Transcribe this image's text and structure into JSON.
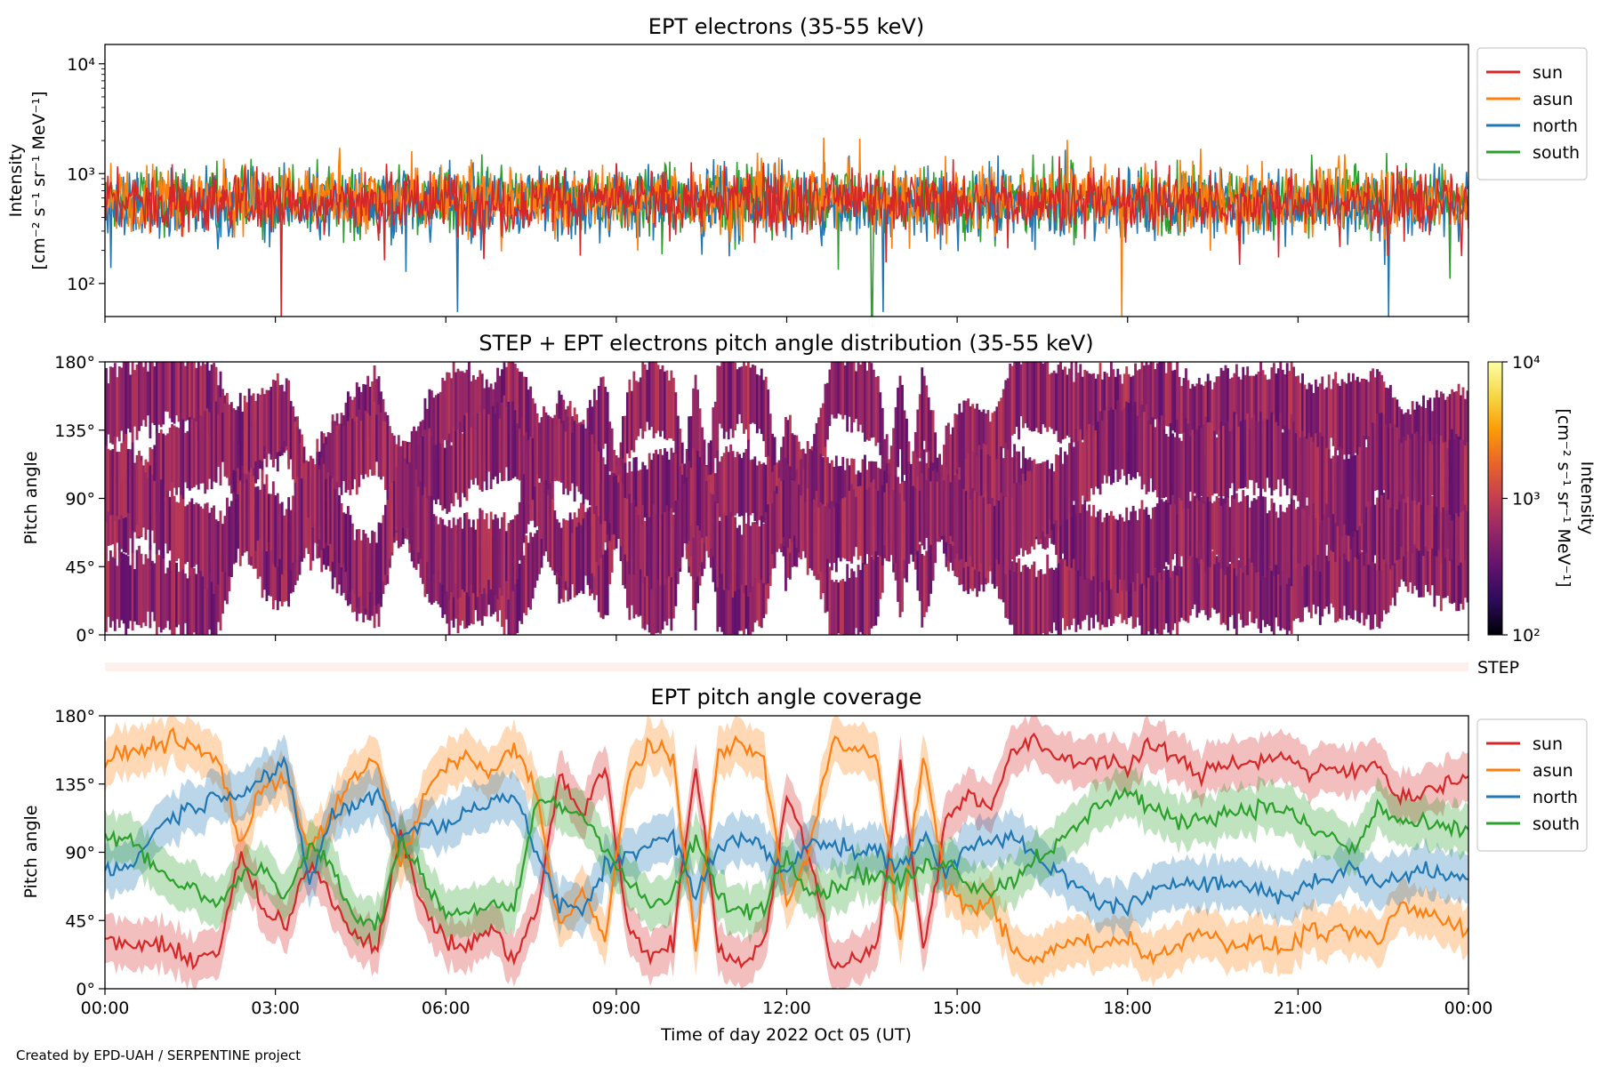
{
  "chart_data": [
    {
      "type": "line",
      "title": "EPT electrons (35-55 keV)",
      "ylabel_line1": "Intensity",
      "ylabel_line2": "[cm⁻² s⁻¹ sr⁻¹ MeV⁻¹]",
      "yscale": "log",
      "ylim": [
        50,
        15000
      ],
      "yticks": [
        {
          "value": 100,
          "label": "10²"
        },
        {
          "value": 1000,
          "label": "10³"
        },
        {
          "value": 10000,
          "label": "10⁴"
        }
      ],
      "xlim_hours": [
        0,
        24
      ],
      "legend_position": "outside-right-top",
      "series": [
        {
          "name": "sun",
          "color": "#d62728",
          "baseline": 560,
          "spread": 0.14
        },
        {
          "name": "asun",
          "color": "#ff7f0e",
          "baseline": 600,
          "spread": 0.15
        },
        {
          "name": "north",
          "color": "#1f77b4",
          "baseline": 540,
          "spread": 0.16
        },
        {
          "name": "south",
          "color": "#2ca02c",
          "baseline": 580,
          "spread": 0.15
        }
      ],
      "series_draw_order": [
        "south",
        "north",
        "asun",
        "sun"
      ],
      "notable_drops": [
        {
          "series": "sun",
          "x_hours": 3.1,
          "y": 50
        },
        {
          "series": "north",
          "x_hours": 6.2,
          "y": 55
        },
        {
          "series": "south",
          "x_hours": 13.5,
          "y": 50
        },
        {
          "series": "north",
          "x_hours": 13.7,
          "y": 55
        },
        {
          "series": "asun",
          "x_hours": 17.9,
          "y": 50
        },
        {
          "series": "north",
          "x_hours": 22.6,
          "y": 50
        }
      ],
      "notable_peaks": [
        {
          "series": "north",
          "x_hours": 16.9,
          "y": 1650
        },
        {
          "series": "asun",
          "x_hours": 14.8,
          "y": 1450
        }
      ]
    },
    {
      "type": "heatmap",
      "title": "STEP + EPT electrons pitch angle distribution (35-55 keV)",
      "ylabel": "Pitch angle",
      "ylim": [
        0,
        180
      ],
      "yticks": [
        0,
        45,
        90,
        135,
        180
      ],
      "ytick_labels": [
        "0°",
        "45°",
        "90°",
        "135°",
        "180°"
      ],
      "xlim_hours": [
        0,
        24
      ],
      "colormap": "inferno",
      "colorbar": {
        "scale": "log",
        "range": [
          100,
          10000
        ],
        "tick_labels": [
          "10²",
          "10³",
          "10⁴"
        ],
        "label_line1": "Intensity",
        "label_line2": "[cm⁻² s⁻¹ sr⁻¹ MeV⁻¹]",
        "colors": [
          "#000004",
          "#2c0b5a",
          "#61126e",
          "#932667",
          "#c33e50",
          "#e8632c",
          "#fb9b06",
          "#f6d746",
          "#fcffa4"
        ]
      },
      "typical_intensity_range": [
        300,
        900
      ]
    },
    {
      "type": "heatmap",
      "label": "STEP",
      "color": "#fef0ec",
      "xlim_hours": [
        0,
        24
      ]
    },
    {
      "type": "line",
      "title": "EPT pitch angle coverage",
      "ylabel": "Pitch angle",
      "ylim": [
        0,
        180
      ],
      "yticks": [
        0,
        45,
        90,
        135,
        180
      ],
      "ytick_labels": [
        "0°",
        "45°",
        "90°",
        "135°",
        "180°"
      ],
      "xlim_hours": [
        0,
        24
      ],
      "xticks_hours": [
        0,
        3,
        6,
        9,
        12,
        15,
        18,
        21,
        24
      ],
      "xtick_labels": [
        "00:00",
        "03:00",
        "06:00",
        "09:00",
        "12:00",
        "15:00",
        "18:00",
        "21:00",
        "00:00"
      ],
      "xlabel": "Time of day 2022 Oct 05 (UT)",
      "band_half_width_deg": 16,
      "legend_position": "outside-right-top",
      "x_hours": [
        0,
        0.4,
        0.8,
        1.2,
        1.6,
        2.0,
        2.4,
        2.8,
        3.2,
        3.6,
        4.0,
        4.4,
        4.8,
        5.2,
        5.6,
        6.0,
        6.4,
        6.8,
        7.2,
        7.6,
        8.0,
        8.4,
        8.8,
        9.2,
        9.6,
        10.0,
        10.4,
        10.8,
        11.2,
        11.6,
        12.0,
        12.4,
        12.8,
        13.2,
        13.6,
        14.0,
        14.4,
        14.8,
        15.2,
        15.6,
        16.0,
        16.4,
        16.8,
        17.2,
        17.6,
        18.0,
        18.4,
        18.8,
        19.2,
        19.6,
        20.0,
        20.4,
        20.8,
        21.2,
        21.6,
        22.0,
        22.4,
        22.8,
        23.2,
        23.6,
        24.0
      ],
      "series": [
        {
          "name": "sun",
          "color": "#d62728",
          "values": [
            32,
            28,
            30,
            24,
            20,
            25,
            88,
            50,
            40,
            85,
            60,
            35,
            30,
            100,
            55,
            30,
            28,
            40,
            20,
            50,
            140,
            115,
            148,
            40,
            22,
            30,
            150,
            25,
            18,
            30,
            125,
            90,
            15,
            20,
            30,
            148,
            25,
            110,
            130,
            120,
            158,
            162,
            152,
            150,
            152,
            145,
            160,
            155,
            140,
            148,
            150,
            150,
            155,
            140,
            145,
            142,
            150,
            125,
            130,
            135,
            140
          ]
        },
        {
          "name": "asun",
          "color": "#ff7f0e",
          "values": [
            150,
            155,
            160,
            165,
            158,
            150,
            95,
            135,
            140,
            90,
            115,
            140,
            150,
            80,
            125,
            148,
            152,
            140,
            160,
            130,
            40,
            65,
            30,
            140,
            160,
            150,
            30,
            155,
            162,
            150,
            55,
            90,
            165,
            160,
            150,
            32,
            155,
            70,
            50,
            60,
            22,
            18,
            28,
            32,
            28,
            35,
            20,
            25,
            40,
            32,
            30,
            30,
            25,
            40,
            35,
            38,
            30,
            55,
            50,
            45,
            40
          ]
        },
        {
          "name": "north",
          "color": "#1f77b4",
          "values": [
            80,
            78,
            100,
            115,
            120,
            128,
            130,
            140,
            145,
            70,
            115,
            120,
            130,
            100,
            110,
            105,
            118,
            125,
            128,
            90,
            55,
            50,
            80,
            90,
            95,
            100,
            60,
            95,
            100,
            92,
            75,
            100,
            95,
            90,
            90,
            80,
            100,
            75,
            95,
            100,
            100,
            85,
            75,
            65,
            55,
            55,
            60,
            70,
            72,
            70,
            68,
            65,
            60,
            70,
            75,
            80,
            68,
            75,
            78,
            75,
            72
          ]
        },
        {
          "name": "south",
          "color": "#2ca02c",
          "values": [
            100,
            102,
            85,
            70,
            65,
            55,
            75,
            80,
            60,
            95,
            80,
            45,
            42,
            100,
            72,
            50,
            52,
            55,
            50,
            125,
            120,
            115,
            95,
            70,
            55,
            60,
            100,
            60,
            50,
            55,
            90,
            65,
            65,
            75,
            75,
            70,
            80,
            85,
            70,
            65,
            72,
            88,
            95,
            110,
            125,
            130,
            120,
            110,
            112,
            115,
            118,
            120,
            118,
            105,
            100,
            90,
            120,
            110,
            108,
            105,
            105
          ]
        }
      ]
    }
  ],
  "footer": {
    "credit": "Created by EPD-UAH / SERPENTINE project"
  }
}
